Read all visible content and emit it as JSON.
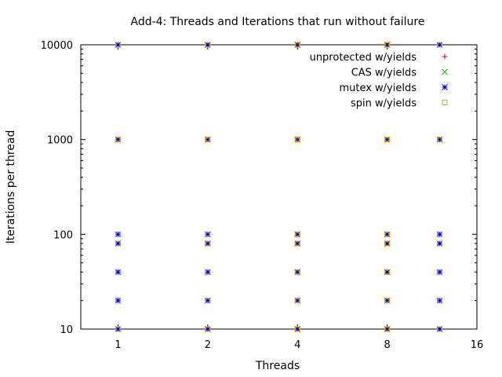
{
  "chart_data": {
    "type": "scatter",
    "title": "Add-4: Threads and Iterations that run without failure",
    "xlabel": "Threads",
    "ylabel": "Iterations per thread",
    "x_scale": "log2",
    "y_scale": "log10",
    "xlim": [
      0.75,
      16
    ],
    "ylim": [
      10,
      10000
    ],
    "x_ticks": [
      1,
      2,
      4,
      8,
      16
    ],
    "x_tick_labels": [
      "1",
      "2",
      "4",
      "8",
      "16"
    ],
    "y_ticks": [
      10,
      100,
      1000,
      10000
    ],
    "y_tick_labels": [
      "10",
      "100",
      "1000",
      "10000"
    ],
    "grid": false,
    "legend_position": "top-right",
    "series": [
      {
        "name": "unprotected w/yields",
        "color": "#cc0000",
        "marker": "plus",
        "points": [
          [
            1,
            10000
          ],
          [
            2,
            10000
          ],
          [
            4,
            10000
          ],
          [
            8,
            10000
          ],
          [
            12,
            10000
          ]
        ]
      },
      {
        "name": "CAS w/yields",
        "color": "#00b400",
        "marker": "cross",
        "points": [
          [
            1,
            10
          ],
          [
            1,
            20
          ],
          [
            1,
            40
          ],
          [
            1,
            80
          ],
          [
            1,
            100
          ],
          [
            1,
            1000
          ],
          [
            1,
            10000
          ],
          [
            2,
            10
          ],
          [
            2,
            20
          ],
          [
            2,
            40
          ],
          [
            2,
            80
          ],
          [
            2,
            100
          ],
          [
            2,
            1000
          ],
          [
            2,
            10000
          ],
          [
            4,
            10
          ],
          [
            4,
            20
          ],
          [
            4,
            40
          ],
          [
            4,
            80
          ],
          [
            4,
            100
          ],
          [
            4,
            1000
          ],
          [
            4,
            10000
          ],
          [
            8,
            10
          ],
          [
            8,
            20
          ],
          [
            8,
            40
          ],
          [
            8,
            80
          ],
          [
            8,
            100
          ],
          [
            8,
            1000
          ],
          [
            8,
            10000
          ],
          [
            12,
            10
          ],
          [
            12,
            20
          ],
          [
            12,
            40
          ],
          [
            12,
            80
          ],
          [
            12,
            100
          ],
          [
            12,
            1000
          ],
          [
            12,
            10000
          ]
        ]
      },
      {
        "name": "mutex w/yields",
        "color": "#0000cc",
        "marker": "star",
        "points": [
          [
            1,
            10
          ],
          [
            1,
            20
          ],
          [
            1,
            40
          ],
          [
            1,
            80
          ],
          [
            1,
            100
          ],
          [
            1,
            1000
          ],
          [
            1,
            10000
          ],
          [
            2,
            10
          ],
          [
            2,
            20
          ],
          [
            2,
            40
          ],
          [
            2,
            80
          ],
          [
            2,
            100
          ],
          [
            2,
            1000
          ],
          [
            2,
            10000
          ],
          [
            4,
            10
          ],
          [
            4,
            20
          ],
          [
            4,
            40
          ],
          [
            4,
            80
          ],
          [
            4,
            100
          ],
          [
            4,
            1000
          ],
          [
            4,
            10000
          ],
          [
            8,
            10
          ],
          [
            8,
            20
          ],
          [
            8,
            40
          ],
          [
            8,
            80
          ],
          [
            8,
            100
          ],
          [
            8,
            1000
          ],
          [
            8,
            10000
          ],
          [
            12,
            10
          ],
          [
            12,
            20
          ],
          [
            12,
            40
          ],
          [
            12,
            80
          ],
          [
            12,
            100
          ],
          [
            12,
            1000
          ],
          [
            12,
            10000
          ]
        ]
      },
      {
        "name": "spin w/yields",
        "color": "#e8a000",
        "marker": "square",
        "points": [
          [
            1,
            10
          ],
          [
            1,
            20
          ],
          [
            1,
            40
          ],
          [
            1,
            80
          ],
          [
            1,
            100
          ],
          [
            1,
            1000
          ],
          [
            1,
            10000
          ],
          [
            2,
            10
          ],
          [
            2,
            20
          ],
          [
            2,
            40
          ],
          [
            2,
            80
          ],
          [
            2,
            100
          ],
          [
            2,
            1000
          ],
          [
            2,
            10000
          ],
          [
            4,
            10
          ],
          [
            4,
            20
          ],
          [
            4,
            40
          ],
          [
            4,
            80
          ],
          [
            4,
            100
          ],
          [
            4,
            1000
          ],
          [
            4,
            10000
          ],
          [
            8,
            10
          ],
          [
            8,
            20
          ],
          [
            8,
            40
          ],
          [
            8,
            80
          ],
          [
            8,
            100
          ],
          [
            8,
            1000
          ],
          [
            8,
            10000
          ],
          [
            12,
            10
          ],
          [
            12,
            20
          ],
          [
            12,
            40
          ],
          [
            12,
            80
          ],
          [
            12,
            100
          ],
          [
            12,
            1000
          ],
          [
            12,
            10000
          ]
        ]
      }
    ]
  }
}
